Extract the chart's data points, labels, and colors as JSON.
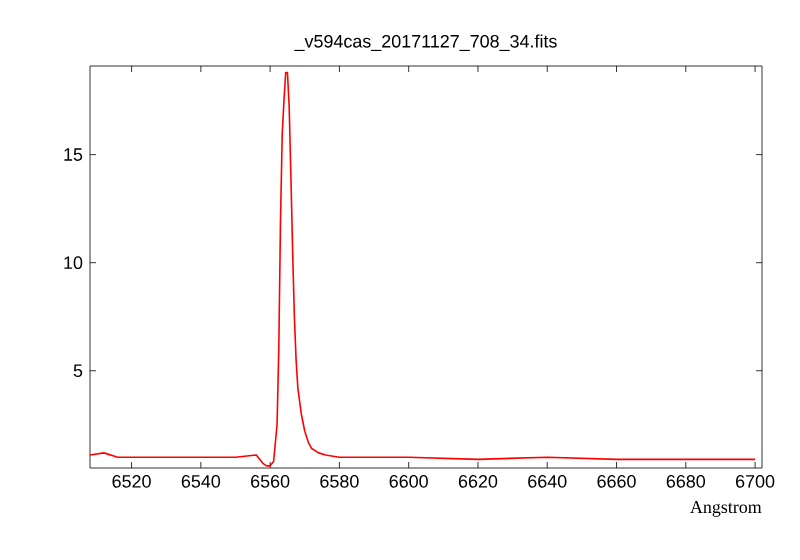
{
  "chart_data": {
    "type": "line",
    "title": "_v594cas_20171127_708_34.fits",
    "xlabel": "Angstrom",
    "x": [
      6508,
      6512,
      6516,
      6520,
      6530,
      6540,
      6550,
      6556,
      6557,
      6558,
      6559,
      6560,
      6561,
      6562,
      6562.5,
      6563,
      6563.5,
      6564,
      6564.5,
      6565,
      6565.5,
      6566,
      6566.5,
      6567,
      6567.5,
      6568,
      6569,
      6570,
      6571,
      6572,
      6574,
      6576,
      6580,
      6600,
      6620,
      6640,
      6660,
      6680,
      6690,
      6700
    ],
    "series": [
      {
        "color": "#ff0000",
        "values": [
          1.1,
          1.2,
          1.0,
          1.0,
          1.0,
          1.0,
          1.0,
          1.1,
          0.9,
          0.7,
          0.6,
          0.6,
          0.8,
          2.5,
          6,
          12,
          16,
          17.5,
          18.8,
          18.8,
          17.2,
          14,
          10.5,
          7.5,
          5.5,
          4.2,
          3,
          2.2,
          1.7,
          1.4,
          1.2,
          1.1,
          1.0,
          1.0,
          0.9,
          1.0,
          0.9,
          0.9,
          0.9,
          0.9
        ]
      }
    ],
    "xlim": [
      6508,
      6702
    ],
    "ylim": [
      0.5,
      19.1
    ],
    "xticks": [
      6520,
      6540,
      6560,
      6580,
      6600,
      6620,
      6640,
      6660,
      6680,
      6700
    ],
    "yticks": [
      5,
      10,
      15
    ],
    "grid": false,
    "marker": "none",
    "line_style": "solid"
  }
}
